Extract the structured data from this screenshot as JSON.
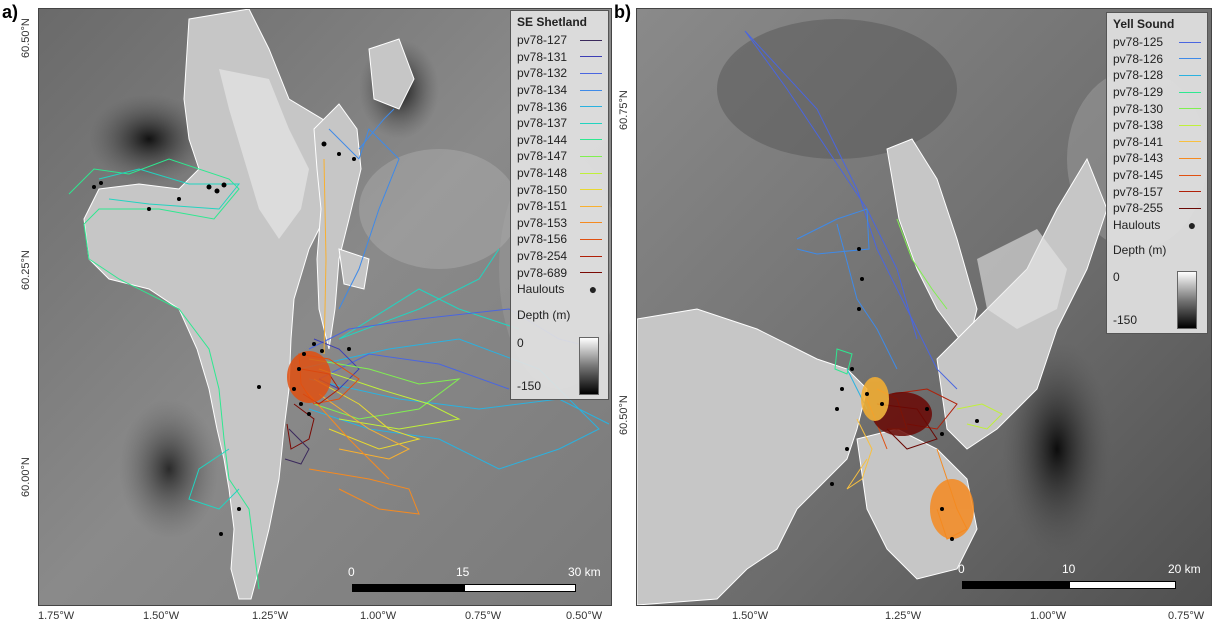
{
  "panels": [
    {
      "label": "a)",
      "legend_title": "SE Shetland",
      "tracks": [
        {
          "name": "pv78-127",
          "color": "#3b2a5c"
        },
        {
          "name": "pv78-131",
          "color": "#3d3fb5"
        },
        {
          "name": "pv78-132",
          "color": "#4a66e0"
        },
        {
          "name": "pv78-134",
          "color": "#3f8ae8"
        },
        {
          "name": "pv78-136",
          "color": "#2ab2e0"
        },
        {
          "name": "pv78-137",
          "color": "#22d4c0"
        },
        {
          "name": "pv78-144",
          "color": "#2ee890"
        },
        {
          "name": "pv78-147",
          "color": "#80f050"
        },
        {
          "name": "pv78-148",
          "color": "#c0f03a"
        },
        {
          "name": "pv78-150",
          "color": "#e8d830"
        },
        {
          "name": "pv78-151",
          "color": "#f8b030"
        },
        {
          "name": "pv78-153",
          "color": "#f58a20"
        },
        {
          "name": "pv78-156",
          "color": "#e05010"
        },
        {
          "name": "pv78-254",
          "color": "#b02008"
        },
        {
          "name": "pv78-689",
          "color": "#7a0a04"
        }
      ],
      "haulouts_label": "Haulouts",
      "depth_title": "Depth (m)",
      "depth_max": "0",
      "depth_min": "-150",
      "scale_labels": [
        "0",
        "15",
        "30 km"
      ],
      "x_ticks": [
        "1.75°W",
        "1.50°W",
        "1.25°W",
        "1.00°W",
        "0.75°W",
        "0.50°W"
      ],
      "y_ticks": [
        "60.50°N",
        "60.25°N",
        "60.00°N"
      ]
    },
    {
      "label": "b)",
      "legend_title": "Yell Sound",
      "tracks": [
        {
          "name": "pv78-125",
          "color": "#4a66e0"
        },
        {
          "name": "pv78-126",
          "color": "#3f8ae8"
        },
        {
          "name": "pv78-128",
          "color": "#2ab2e0"
        },
        {
          "name": "pv78-129",
          "color": "#2ee890"
        },
        {
          "name": "pv78-130",
          "color": "#80f050"
        },
        {
          "name": "pv78-138",
          "color": "#c0f03a"
        },
        {
          "name": "pv78-141",
          "color": "#f8c040"
        },
        {
          "name": "pv78-143",
          "color": "#f58a20"
        },
        {
          "name": "pv78-145",
          "color": "#e05010"
        },
        {
          "name": "pv78-157",
          "color": "#b02008"
        },
        {
          "name": "pv78-255",
          "color": "#6a0804"
        }
      ],
      "haulouts_label": "Haulouts",
      "depth_title": "Depth (m)",
      "depth_max": "0",
      "depth_min": "-150",
      "scale_labels": [
        "0",
        "10",
        "20 km"
      ],
      "x_ticks": [
        "1.50°W",
        "1.25°W",
        "1.00°W",
        "0.75°W"
      ],
      "y_ticks": [
        "60.75°N",
        "60.50°N"
      ]
    }
  ]
}
